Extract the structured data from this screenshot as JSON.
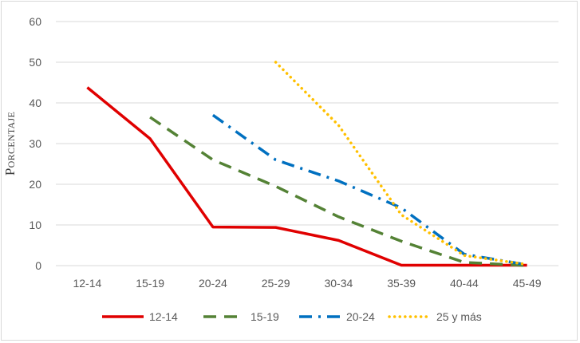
{
  "chart_data": {
    "type": "line",
    "title": "",
    "xlabel": "",
    "ylabel": "Porcentaje",
    "categories": [
      "12-14",
      "15-19",
      "20-24",
      "25-29",
      "30-34",
      "35-39",
      "40-44",
      "45-49"
    ],
    "ylim": [
      0,
      60
    ],
    "yticks": [
      0,
      10,
      20,
      30,
      40,
      50,
      60
    ],
    "grid": true,
    "legend": "bottom",
    "series": [
      {
        "name": "12-14",
        "color": "#e00000",
        "dash": "solid",
        "values": [
          43.8,
          31.2,
          9.5,
          9.4,
          6.2,
          0.1,
          0.1,
          0.1
        ]
      },
      {
        "name": "15-19",
        "color": "#548235",
        "dash": "dash",
        "values": [
          null,
          36.5,
          26.0,
          19.5,
          12.0,
          6.0,
          0.8,
          0.0
        ]
      },
      {
        "name": "20-24",
        "color": "#0070c0",
        "dash": "dashdot",
        "values": [
          null,
          null,
          37.0,
          26.0,
          20.8,
          14.2,
          2.8,
          0.2
        ]
      },
      {
        "name": "25 y más",
        "color": "#ffc000",
        "dash": "dot",
        "values": [
          null,
          null,
          null,
          50.0,
          34.5,
          12.5,
          2.5,
          0.3
        ]
      }
    ]
  }
}
